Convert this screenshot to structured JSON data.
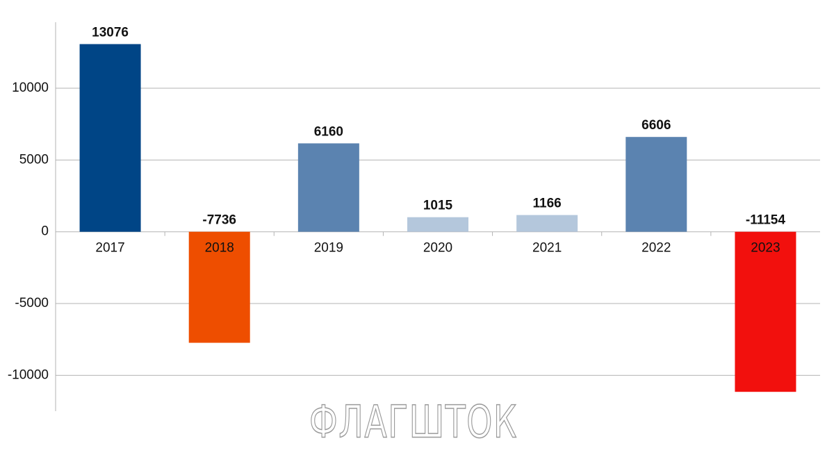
{
  "chart_data": {
    "type": "bar",
    "categories": [
      "2017",
      "2018",
      "2019",
      "2020",
      "2021",
      "2022",
      "2023"
    ],
    "values": [
      13076,
      -7736,
      6160,
      1015,
      1166,
      6606,
      -11154
    ],
    "colors": [
      "#004586",
      "#ee4e00",
      "#5b83b0",
      "#b4c7dc",
      "#b4c7dc",
      "#5b83b0",
      "#f2100d"
    ],
    "ylim": [
      -12500,
      14600
    ],
    "yticks": [
      -10000,
      -5000,
      0,
      5000,
      10000
    ],
    "grid": true,
    "watermark": "ФЛАГШТОК"
  }
}
